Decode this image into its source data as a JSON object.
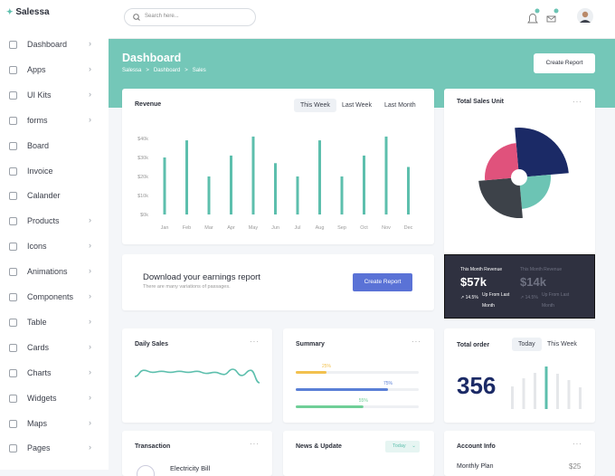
{
  "brand": "Salessa",
  "search": {
    "placeholder": "Search here..."
  },
  "sidebar": [
    {
      "label": "Dashboard",
      "submenu": true
    },
    {
      "label": "Apps",
      "submenu": true
    },
    {
      "label": "UI Kits",
      "submenu": true
    },
    {
      "label": "forms",
      "submenu": true
    },
    {
      "label": "Board",
      "submenu": false
    },
    {
      "label": "Invoice",
      "submenu": false
    },
    {
      "label": "Calander",
      "submenu": false
    },
    {
      "label": "Products",
      "submenu": true
    },
    {
      "label": "Icons",
      "submenu": true
    },
    {
      "label": "Animations",
      "submenu": true
    },
    {
      "label": "Components",
      "submenu": true
    },
    {
      "label": "Table",
      "submenu": true
    },
    {
      "label": "Cards",
      "submenu": true
    },
    {
      "label": "Charts",
      "submenu": true
    },
    {
      "label": "Widgets",
      "submenu": true
    },
    {
      "label": "Maps",
      "submenu": true
    },
    {
      "label": "Pages",
      "submenu": true
    }
  ],
  "header": {
    "title": "Dashboard",
    "breadcrumb": [
      "Salessa",
      "Dashboard",
      "Sales"
    ],
    "button": "Create Report"
  },
  "revenue": {
    "title": "Revenue",
    "tabs": [
      "This Week",
      "Last Week",
      "Last Month"
    ],
    "active_tab": 0,
    "chart_data": {
      "type": "bar",
      "categories": [
        "Jan",
        "Feb",
        "Mar",
        "Apr",
        "May",
        "Jun",
        "Jul",
        "Aug",
        "Sep",
        "Oct",
        "Nov",
        "Dec"
      ],
      "values": [
        30,
        39,
        20,
        31,
        41,
        27,
        20,
        39,
        20,
        31,
        41,
        25
      ],
      "color": "#5dbfad",
      "ylim": [
        0,
        40
      ],
      "yticks": [
        {
          "value": 0,
          "label": "$0k"
        },
        {
          "value": 10,
          "label": "$10k"
        },
        {
          "value": 20,
          "label": "$20k"
        },
        {
          "value": 30,
          "label": "$30k"
        },
        {
          "value": 40,
          "label": "$40k"
        }
      ]
    }
  },
  "sales_unit": {
    "title": "Total Sales Unit",
    "chart_data": {
      "type": "polar",
      "values": [
        55,
        35,
        45,
        38
      ],
      "colors": [
        "#1b2a66",
        "#6cc4b4",
        "#3d4249",
        "#e0527c"
      ]
    }
  },
  "revenue_summary": [
    {
      "label": "This Month Revenue",
      "value": "$57k",
      "change": "14.5%",
      "note": "Up From Last Month"
    },
    {
      "label": "This Month Revenue",
      "value": "$14k",
      "change": "14.5%",
      "note": "Up From Last Month"
    }
  ],
  "download": {
    "title": "Download your earnings report",
    "subtitle": "There are many variations of passages.",
    "button": "Create Report"
  },
  "daily_sales": {
    "title": "Daily Sales",
    "chart_data": {
      "type": "line",
      "color": "#5dbfad",
      "values": [
        42,
        48,
        46,
        47,
        46,
        47,
        46,
        47,
        45,
        46,
        44,
        49,
        43,
        48,
        36
      ]
    }
  },
  "summary": {
    "title": "Summary",
    "chart_data": {
      "type": "progress",
      "values": [
        25,
        75,
        55
      ],
      "value_labels": [
        "25%",
        "75%",
        "55%"
      ],
      "colors": [
        "#f2c14e",
        "#5a7fd6",
        "#6fcf97"
      ]
    }
  },
  "total_order": {
    "title": "Total order",
    "tabs": [
      "Today",
      "This Week"
    ],
    "active_tab": 0,
    "value": "356",
    "chart_data": {
      "type": "bar",
      "values": [
        25,
        34,
        40,
        47,
        39,
        32,
        24
      ],
      "colors": [
        "#e5e7ea",
        "#e5e7ea",
        "#e5e7ea",
        "#5dbfad",
        "#e5e7ea",
        "#e5e7ea",
        "#e5e7ea"
      ]
    }
  },
  "transaction": {
    "title": "Transaction",
    "item": "Electricity Bill"
  },
  "news": {
    "title": "News & Update",
    "filter": "Today"
  },
  "account": {
    "title": "Account Info",
    "plan": "Monthly Plan",
    "price": "$25"
  }
}
